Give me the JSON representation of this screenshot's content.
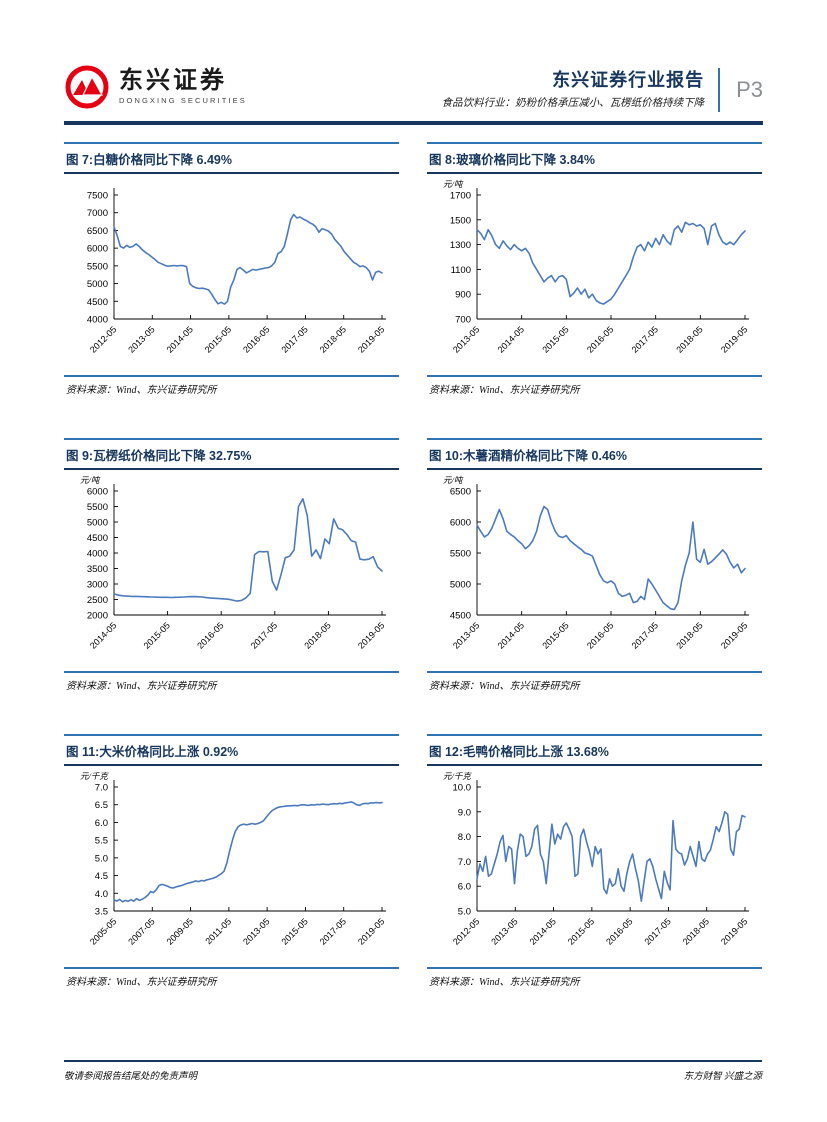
{
  "header": {
    "logo_cn": "东兴证券",
    "logo_en": "DONGXING SECURITIES",
    "report_type": "东兴证券行业报告",
    "subtitle": "食品饮料行业：奶粉价格承压减小、瓦楞纸价格持续下降",
    "page_number": "P3"
  },
  "source_label": "资料来源：Wind、东兴证券研究所",
  "footer": {
    "left": "敬请参阅报告结尾处的免责声明",
    "right": "东方财智 兴盛之源"
  },
  "colors": {
    "line": "#4B7BBE",
    "navy": "#17375E",
    "rule_blue": "#2E74B5",
    "page_gray": "#8a8f94",
    "logo_red": "#E60012"
  },
  "chart_data": [
    {
      "type": "line",
      "title": "图 7:白糖价格同比下降 6.49%",
      "series_name": "白糖价格",
      "unit": "",
      "xticks": [
        "2012-05",
        "2013-05",
        "2014-05",
        "2015-05",
        "2016-05",
        "2017-05",
        "2018-05",
        "2019-05"
      ],
      "ylim": [
        4000,
        7500
      ],
      "yticks": [
        4000,
        4500,
        5000,
        5500,
        6000,
        6500,
        7000,
        7500
      ],
      "ytick_labels": [
        "4000",
        "4500",
        "5000",
        "5500",
        "6000",
        "6500",
        "7000",
        "7500"
      ],
      "values": [
        6600,
        6350,
        6050,
        6000,
        6080,
        6020,
        6050,
        6120,
        6050,
        5950,
        5880,
        5820,
        5750,
        5680,
        5600,
        5560,
        5520,
        5490,
        5500,
        5510,
        5500,
        5510,
        5505,
        5480,
        5000,
        4920,
        4880,
        4860,
        4870,
        4850,
        4820,
        4700,
        4550,
        4430,
        4470,
        4420,
        4500,
        4900,
        5100,
        5400,
        5450,
        5380,
        5300,
        5350,
        5400,
        5380,
        5400,
        5420,
        5440,
        5450,
        5500,
        5600,
        5850,
        5900,
        6050,
        6400,
        6800,
        6950,
        6850,
        6880,
        6820,
        6780,
        6720,
        6680,
        6600,
        6450,
        6550,
        6520,
        6480,
        6400,
        6250,
        6150,
        6050,
        5900,
        5800,
        5700,
        5600,
        5550,
        5480,
        5500,
        5450,
        5350,
        5100,
        5320,
        5350,
        5300
      ]
    },
    {
      "type": "line",
      "title": "图 8:玻璃价格同比下降 3.84%",
      "series_name": "玻璃价格",
      "unit": "元/吨",
      "xticks": [
        "2013-05",
        "2014-05",
        "2015-05",
        "2016-05",
        "2017-05",
        "2018-05",
        "2019-05"
      ],
      "ylim": [
        700,
        1700
      ],
      "yticks": [
        700,
        900,
        1100,
        1300,
        1500,
        1700
      ],
      "ytick_labels": [
        "700",
        "900",
        "1100",
        "1300",
        "1500",
        "1700"
      ],
      "values": [
        1420,
        1390,
        1340,
        1420,
        1370,
        1300,
        1270,
        1330,
        1290,
        1260,
        1300,
        1270,
        1250,
        1270,
        1230,
        1150,
        1100,
        1050,
        1000,
        1030,
        1050,
        1000,
        1040,
        1050,
        1020,
        880,
        910,
        950,
        900,
        940,
        870,
        900,
        850,
        830,
        820,
        840,
        860,
        900,
        950,
        1000,
        1050,
        1100,
        1200,
        1280,
        1300,
        1250,
        1320,
        1280,
        1350,
        1300,
        1380,
        1330,
        1300,
        1420,
        1450,
        1400,
        1480,
        1460,
        1470,
        1450,
        1460,
        1430,
        1300,
        1450,
        1470,
        1380,
        1320,
        1300,
        1320,
        1300,
        1340,
        1380,
        1410
      ]
    },
    {
      "type": "line",
      "title": "图 9:瓦楞纸价格同比下降 32.75%",
      "series_name": "瓦楞纸价格",
      "unit": "元/吨",
      "xticks": [
        "2014-05",
        "2015-05",
        "2016-05",
        "2017-05",
        "2018-05",
        "2019-05"
      ],
      "ylim": [
        2000,
        6000
      ],
      "yticks": [
        2000,
        2500,
        3000,
        3500,
        4000,
        4500,
        5000,
        5500,
        6000
      ],
      "ytick_labels": [
        "2000",
        "2500",
        "3000",
        "3500",
        "4000",
        "4500",
        "5000",
        "5500",
        "6000"
      ],
      "values": [
        2680,
        2640,
        2620,
        2610,
        2600,
        2600,
        2595,
        2590,
        2585,
        2580,
        2575,
        2570,
        2570,
        2565,
        2570,
        2575,
        2580,
        2590,
        2595,
        2590,
        2580,
        2560,
        2545,
        2540,
        2530,
        2520,
        2510,
        2480,
        2450,
        2470,
        2550,
        2700,
        3950,
        4050,
        4040,
        4050,
        3100,
        2800,
        3300,
        3850,
        3900,
        4100,
        5500,
        5750,
        5200,
        3900,
        4100,
        3820,
        4450,
        4300,
        5100,
        4800,
        4750,
        4600,
        4400,
        4350,
        3800,
        3780,
        3800,
        3880,
        3550,
        3420
      ]
    },
    {
      "type": "line",
      "title": "图 10:木薯酒精价格同比下降 0.46%",
      "series_name": "木薯酒精价格",
      "unit": "元/吨",
      "xticks": [
        "2013-05",
        "2014-05",
        "2015-05",
        "2016-05",
        "2017-05",
        "2018-05",
        "2019-05"
      ],
      "ylim": [
        4500,
        6500
      ],
      "yticks": [
        4500,
        5000,
        5500,
        6000,
        6500
      ],
      "ytick_labels": [
        "4500",
        "5000",
        "5500",
        "6000",
        "6500"
      ],
      "values": [
        5950,
        5850,
        5760,
        5800,
        5900,
        6050,
        6200,
        6050,
        5850,
        5800,
        5760,
        5700,
        5650,
        5570,
        5620,
        5700,
        5850,
        6100,
        6250,
        6200,
        6000,
        5850,
        5770,
        5750,
        5780,
        5700,
        5650,
        5600,
        5560,
        5500,
        5480,
        5450,
        5300,
        5150,
        5050,
        5020,
        5050,
        5000,
        4850,
        4800,
        4820,
        4850,
        4700,
        4720,
        4800,
        4750,
        5080,
        5000,
        4900,
        4800,
        4700,
        4650,
        4600,
        4590,
        4700,
        5050,
        5300,
        5500,
        6000,
        5400,
        5350,
        5560,
        5320,
        5360,
        5420,
        5480,
        5550,
        5480,
        5350,
        5260,
        5320,
        5180,
        5250
      ]
    },
    {
      "type": "line",
      "title": "图 11:大米价格同比上涨 0.92%",
      "series_name": "大米价格",
      "unit": "元/千克",
      "xticks": [
        "2005-05",
        "2007-05",
        "2009-05",
        "2011-05",
        "2013-05",
        "2015-05",
        "2017-05",
        "2019-05"
      ],
      "ylim": [
        3.5,
        7.0
      ],
      "yticks": [
        3.5,
        4.0,
        4.5,
        5.0,
        5.5,
        6.0,
        6.5,
        7.0
      ],
      "ytick_labels": [
        "3.5",
        "4.0",
        "4.5",
        "5.0",
        "5.5",
        "6.0",
        "6.5",
        "7.0"
      ],
      "values": [
        3.82,
        3.78,
        3.83,
        3.76,
        3.8,
        3.77,
        3.82,
        3.78,
        3.85,
        3.8,
        3.83,
        3.88,
        3.95,
        4.05,
        4.02,
        4.1,
        4.22,
        4.25,
        4.23,
        4.2,
        4.16,
        4.15,
        4.18,
        4.2,
        4.22,
        4.25,
        4.28,
        4.3,
        4.32,
        4.35,
        4.33,
        4.36,
        4.35,
        4.38,
        4.4,
        4.42,
        4.45,
        4.5,
        4.55,
        4.62,
        4.85,
        5.2,
        5.5,
        5.75,
        5.88,
        5.93,
        5.95,
        5.93,
        5.95,
        5.97,
        5.95,
        5.97,
        6.0,
        6.05,
        6.15,
        6.25,
        6.33,
        6.38,
        6.42,
        6.44,
        6.45,
        6.46,
        6.47,
        6.47,
        6.48,
        6.47,
        6.49,
        6.5,
        6.49,
        6.48,
        6.5,
        6.49,
        6.51,
        6.5,
        6.52,
        6.51,
        6.5,
        6.52,
        6.53,
        6.52,
        6.54,
        6.53,
        6.55,
        6.56,
        6.58,
        6.55,
        6.5,
        6.48,
        6.52,
        6.54,
        6.53,
        6.55,
        6.55,
        6.56,
        6.55,
        6.56
      ]
    },
    {
      "type": "line",
      "title": "图 12:毛鸭价格同比上涨 13.68%",
      "series_name": "毛鸭价格",
      "unit": "元/千克",
      "xticks": [
        "2012-05",
        "2013-05",
        "2014-05",
        "2015-05",
        "2016-05",
        "2017-05",
        "2018-05",
        "2019-05"
      ],
      "ylim": [
        5.0,
        10.0
      ],
      "yticks": [
        5.0,
        6.0,
        7.0,
        8.0,
        9.0,
        10.0
      ],
      "ytick_labels": [
        "5.0",
        "6.0",
        "7.0",
        "8.0",
        "9.0",
        "10.0"
      ],
      "values": [
        6.3,
        6.9,
        6.6,
        7.2,
        6.4,
        6.5,
        6.9,
        7.3,
        7.8,
        8.05,
        7.0,
        7.6,
        7.5,
        6.1,
        7.4,
        8.1,
        8.0,
        7.2,
        7.3,
        7.6,
        8.3,
        8.45,
        7.3,
        7.0,
        6.1,
        7.3,
        8.5,
        7.7,
        8.1,
        7.9,
        8.4,
        8.55,
        8.3,
        8.0,
        6.4,
        6.5,
        8.0,
        8.3,
        7.8,
        7.4,
        6.8,
        7.6,
        7.3,
        7.5,
        5.9,
        5.7,
        6.3,
        6.0,
        6.1,
        6.7,
        6.0,
        5.8,
        6.5,
        7.0,
        7.3,
        6.7,
        6.2,
        5.4,
        6.2,
        7.0,
        7.1,
        6.8,
        6.3,
        5.9,
        5.5,
        6.6,
        6.15,
        5.85,
        8.65,
        7.5,
        7.35,
        7.3,
        6.85,
        7.1,
        7.6,
        7.2,
        6.8,
        7.8,
        7.1,
        7.0,
        7.3,
        7.45,
        7.9,
        8.4,
        8.2,
        8.55,
        9.0,
        8.9,
        7.5,
        7.25,
        8.2,
        8.3,
        8.85,
        8.8
      ]
    }
  ]
}
